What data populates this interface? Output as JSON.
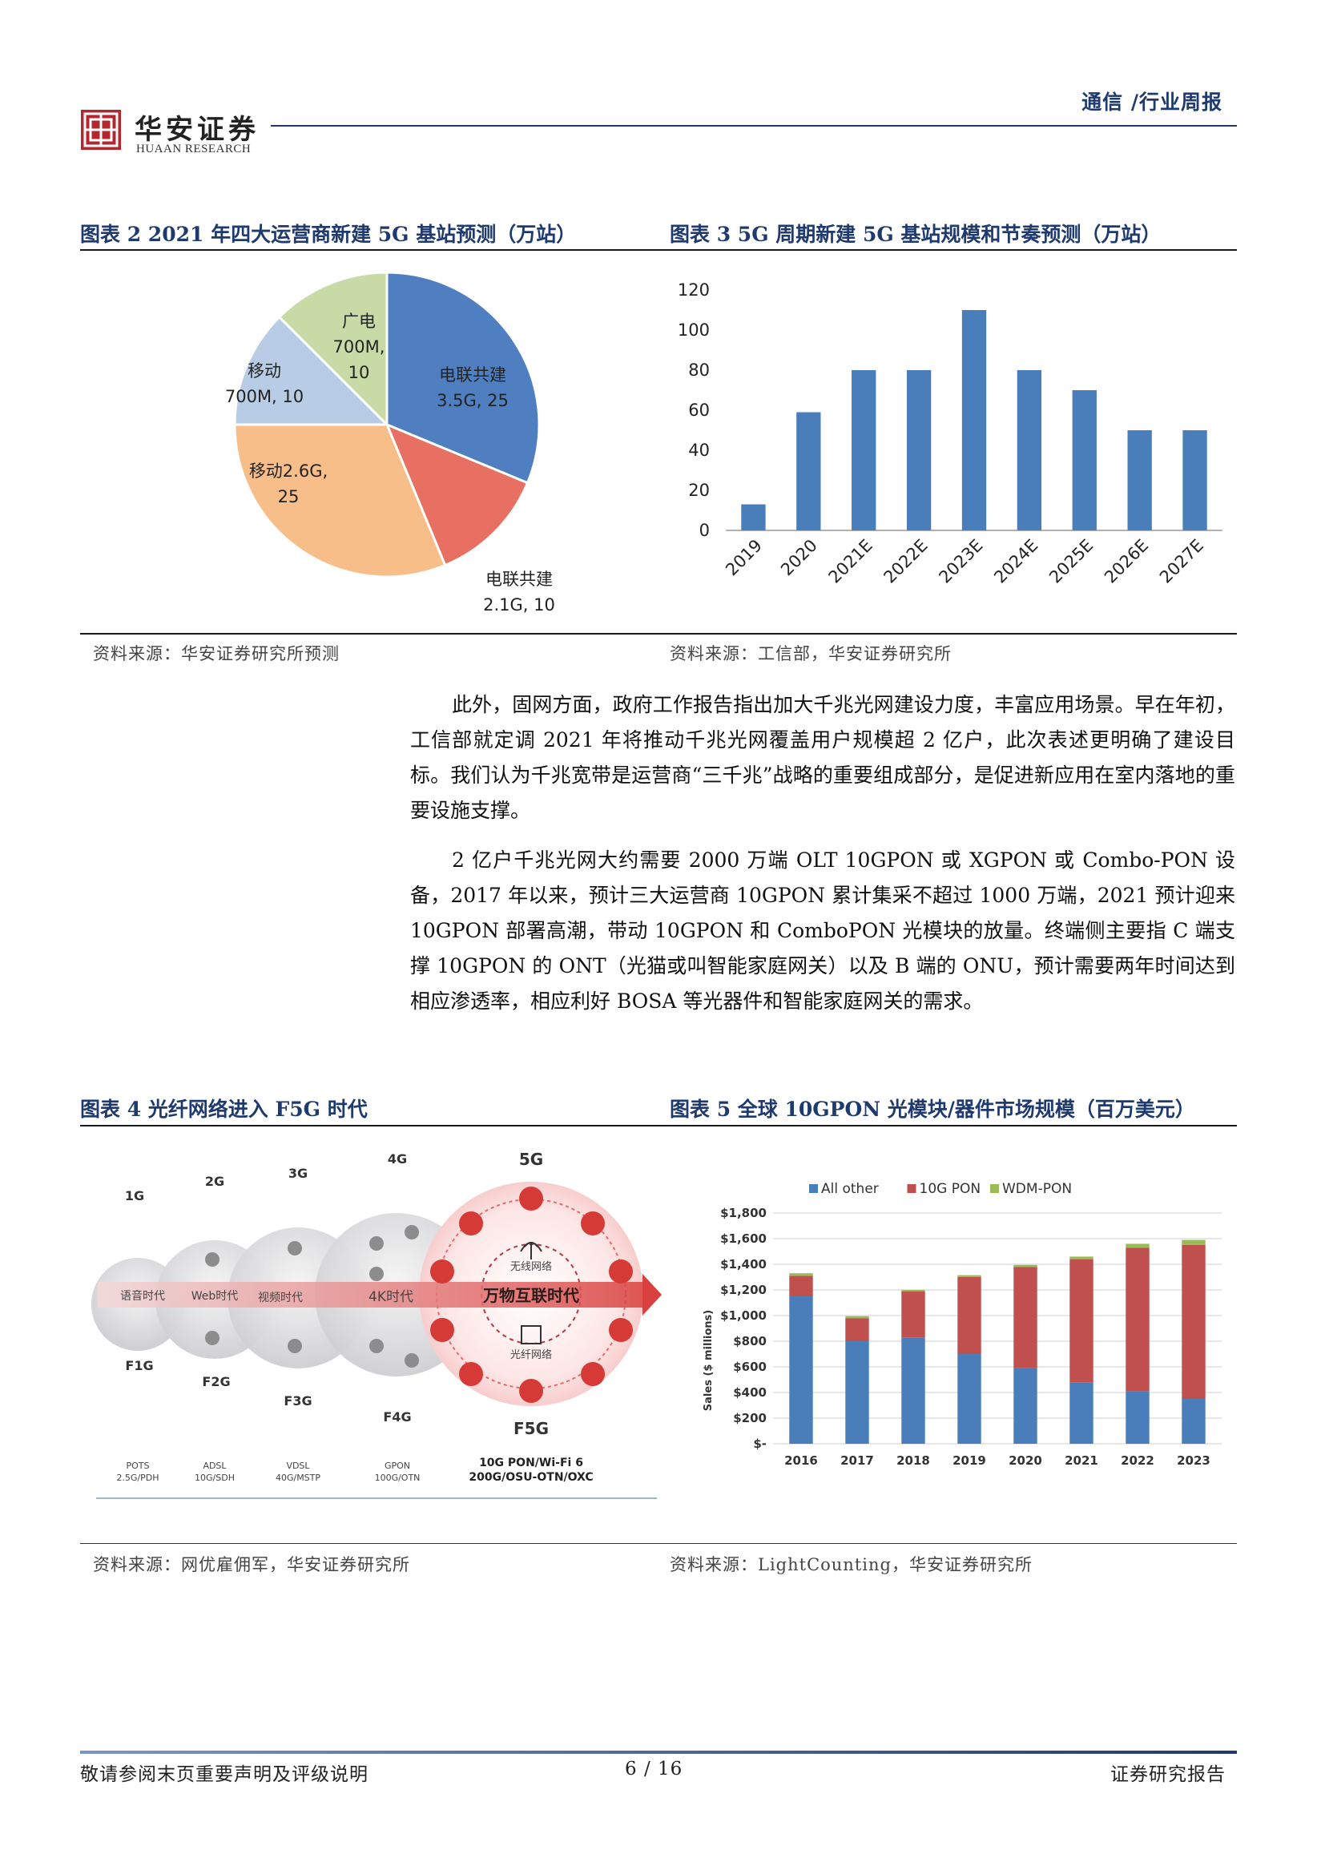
{
  "header": {
    "brand_cn": "华安证券",
    "brand_en": "HUAAN RESEARCH",
    "section_tag": "通信 /行业周报"
  },
  "fig2": {
    "title": "图表 2 2021 年四大运营商新建 5G 基站预测（万站）",
    "source": "资料来源：华安证券研究所预测",
    "chart_data": {
      "type": "pie",
      "title": "",
      "slices": [
        {
          "label_line1": "电联共建",
          "label_line2": "3.5G, 25",
          "name": "电联共建3.5G",
          "value": 25,
          "color": "#4f7fc1"
        },
        {
          "label_line1": "电联共建",
          "label_line2": "2.1G, 10",
          "name": "电联共建2.1G",
          "value": 10,
          "color": "#e87063"
        },
        {
          "label_line1": "移动2.6G,",
          "label_line2": "25",
          "name": "移动2.6G",
          "value": 25,
          "color": "#f8be8a"
        },
        {
          "label_line1": "移动",
          "label_line2": "700M, 10",
          "name": "移动700M",
          "value": 10,
          "color": "#b9cce6"
        },
        {
          "label_line1": "广电",
          "label_line2": "700M,",
          "label_line3": "10",
          "name": "广电700M",
          "value": 10,
          "color": "#c8dba6"
        }
      ]
    }
  },
  "fig3": {
    "title": "图表 3 5G 周期新建 5G 基站规模和节奏预测（万站）",
    "source": "资料来源：工信部，华安证券研究所",
    "chart_data": {
      "type": "bar",
      "title": "",
      "xlabel": "",
      "ylabel": "",
      "categories": [
        "2019",
        "2020",
        "2021E",
        "2022E",
        "2023E",
        "2024E",
        "2025E",
        "2026E",
        "2027E"
      ],
      "values": [
        13,
        59,
        80,
        80,
        110,
        80,
        70,
        50,
        50
      ],
      "ylim": [
        0,
        120
      ],
      "yticks": [
        0,
        20,
        40,
        60,
        80,
        100,
        120
      ],
      "bar_color": "#4a7ebb",
      "grid": false
    }
  },
  "paragraphs": {
    "p1": "此外，固网方面，政府工作报告指出加大千兆光网建设力度，丰富应用场景。早在年初，工信部就定调 2021 年将推动千兆光网覆盖用户规模超 2 亿户，此次表述更明确了建设目标。我们认为千兆宽带是运营商“三千兆”战略的重要组成部分，是促进新应用在室内落地的重要设施支撑。",
    "p2": "2 亿户千兆光网大约需要 2000 万端 OLT 10GPON 或 XGPON 或 Combo-PON 设备，2017 年以来，预计三大运营商 10GPON 累计集采不超过 1000 万端，2021 预计迎来 10GPON 部署高潮，带动 10GPON 和 ComboPON 光模块的放量。终端侧主要指 C 端支撑 10GPON 的 ONT（光猫或叫智能家庭网关）以及 B 端的 ONU，预计需要两年时间达到相应渗透率，相应利好 BOSA 等光器件和智能家庭网关的需求。"
  },
  "fig4": {
    "title": "图表 4 光纤网络进入 F5G 时代",
    "source": "资料来源：网优雇佣军，华安证券研究所",
    "diagram": {
      "gens": [
        {
          "top": "1G",
          "bottom": "F1G",
          "era": "语音时代",
          "tech_line1": "POTS",
          "tech_line2": "2.5G/PDH"
        },
        {
          "top": "2G",
          "bottom": "F2G",
          "era": "Web时代",
          "tech_line1": "ADSL",
          "tech_line2": "10G/SDH"
        },
        {
          "top": "3G",
          "bottom": "F3G",
          "era": "视频时代",
          "tech_line1": "VDSL",
          "tech_line2": "40G/MSTP"
        },
        {
          "top": "4G",
          "bottom": "F4G",
          "era": "4K时代",
          "tech_line1": "GPON",
          "tech_line2": "100G/OTN"
        }
      ],
      "f5g": {
        "top": "5G",
        "bottom": "F5G",
        "era": "万物互联时代",
        "wireless": "无线网络",
        "optical": "光纤网络",
        "tech_line1": "10G PON/Wi-Fi 6",
        "tech_line2": "200G/OSU-OTN/OXC"
      }
    }
  },
  "fig5": {
    "title": "图表 5 全球 10GPON 光模块/器件市场规模（百万美元）",
    "source": "资料来源：LightCounting，华安证券研究所",
    "chart_data": {
      "type": "bar",
      "stacked": true,
      "title": "",
      "xlabel": "",
      "ylabel": "Sales ($ millions)",
      "categories": [
        "2016",
        "2017",
        "2018",
        "2019",
        "2020",
        "2021",
        "2022",
        "2023"
      ],
      "series": [
        {
          "name": "All other",
          "color": "#4a7ebb",
          "values": [
            1150,
            800,
            830,
            700,
            590,
            480,
            410,
            350
          ]
        },
        {
          "name": "10G PON",
          "color": "#c0504d",
          "values": [
            160,
            180,
            360,
            600,
            790,
            960,
            1120,
            1200
          ]
        },
        {
          "name": "WDM-PON",
          "color": "#9bbb59",
          "values": [
            20,
            15,
            10,
            15,
            15,
            20,
            30,
            40
          ]
        }
      ],
      "ylim": [
        0,
        1800
      ],
      "ytick_labels": [
        "$-",
        "$200",
        "$400",
        "$600",
        "$800",
        "$1,000",
        "$1,200",
        "$1,400",
        "$1,600",
        "$1,800"
      ],
      "legend_position": "top",
      "grid": true
    }
  },
  "footer": {
    "left": "敬请参阅末页重要声明及评级说明",
    "center": "6 / 16",
    "right": "证券研究报告"
  }
}
